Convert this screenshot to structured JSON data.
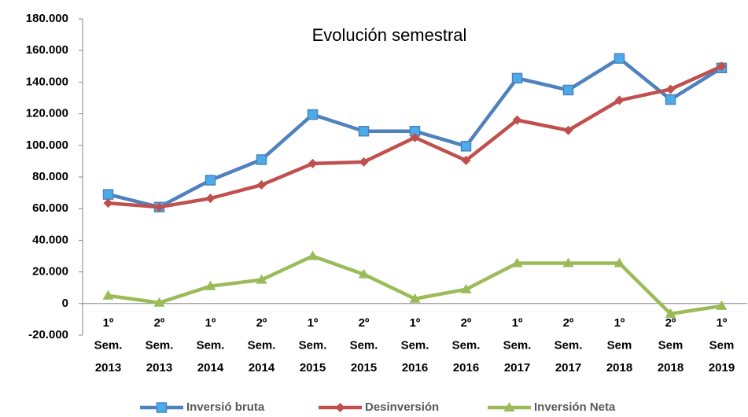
{
  "chart_data": {
    "type": "line",
    "title": "Evolución semestral",
    "categories": [
      [
        "1º",
        "Sem.",
        "2013"
      ],
      [
        "2º",
        "Sem.",
        "2013"
      ],
      [
        "1º",
        "Sem.",
        "2014"
      ],
      [
        "2º",
        "Sem.",
        "2014"
      ],
      [
        "1º",
        "Sem.",
        "2015"
      ],
      [
        "2º",
        "Sem.",
        "2015"
      ],
      [
        "1º",
        "Sem.",
        "2016"
      ],
      [
        "2º",
        "Sem.",
        "2016"
      ],
      [
        "1º",
        "Sem.",
        "2017"
      ],
      [
        "2º",
        "Sem.",
        "2017"
      ],
      [
        "1º",
        "Sem",
        "2018"
      ],
      [
        "2º",
        "Sem",
        "2018"
      ],
      [
        "1º",
        "Sem",
        "2019"
      ]
    ],
    "series": [
      {
        "name": "Inversió bruta",
        "color": "#4f81bd",
        "marker": "square",
        "marker_color": "#4bacea",
        "values": [
          69000,
          61000,
          78000,
          91000,
          119500,
          109000,
          109000,
          99500,
          142500,
          135000,
          155000,
          129000,
          149000
        ]
      },
      {
        "name": "Desinversión",
        "color": "#c0504d",
        "marker": "diamond",
        "marker_color": "#c0504d",
        "values": [
          63500,
          61000,
          66500,
          75000,
          88500,
          89500,
          105000,
          90500,
          116000,
          109500,
          128500,
          135500,
          150000
        ]
      },
      {
        "name": "Inversión Neta",
        "color": "#9bbb59",
        "marker": "triangle",
        "marker_color": "#9bbb59",
        "values": [
          5000,
          500,
          11000,
          15000,
          30000,
          18500,
          3000,
          9000,
          25500,
          25500,
          25500,
          -6500,
          -1500
        ]
      }
    ],
    "ylim": [
      -20000,
      180000
    ],
    "yticks": [
      {
        "value": -20000,
        "label": "-20.000"
      },
      0,
      {
        "value": 20000,
        "label": "20.000"
      },
      {
        "value": 40000,
        "label": "40.000"
      },
      {
        "value": 60000,
        "label": "60.000"
      },
      {
        "value": 80000,
        "label": "80.000"
      },
      {
        "value": 100000,
        "label": "100.000"
      },
      {
        "value": 120000,
        "label": "120.000"
      },
      {
        "value": 140000,
        "label": "140.000"
      },
      {
        "value": 160000,
        "label": "160.000"
      },
      {
        "value": 180000,
        "label": "180.000"
      }
    ],
    "legend": "bottom"
  }
}
